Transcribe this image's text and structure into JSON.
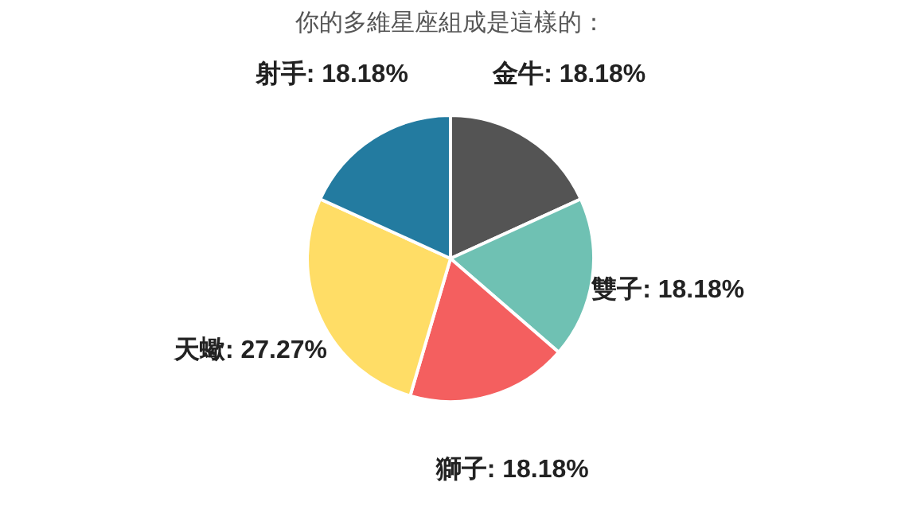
{
  "chart_data": {
    "type": "pie",
    "title": "你的多維星座組成是這樣的：",
    "categories": [
      "金牛",
      "雙子",
      "獅子",
      "天蠍",
      "射手"
    ],
    "values": [
      18.18,
      18.18,
      18.18,
      27.27,
      18.18
    ],
    "value_labels": [
      "18.18%",
      "18.18%",
      "18.18%",
      "27.27%",
      "18.18%"
    ],
    "colors": [
      "#545454",
      "#6fc1b3",
      "#f45f5f",
      "#ffdd66",
      "#237ba0"
    ]
  }
}
